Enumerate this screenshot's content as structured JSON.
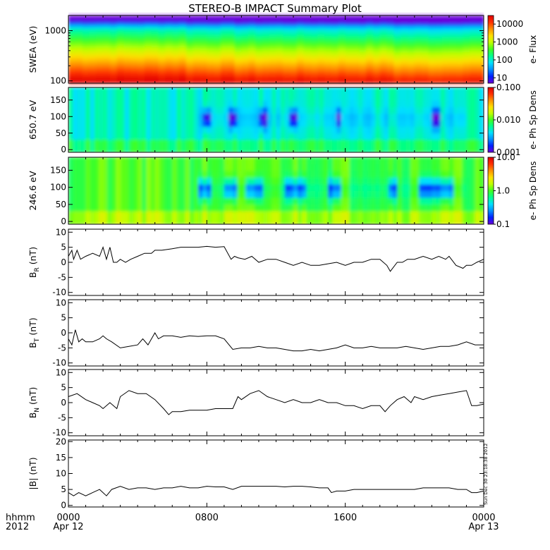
{
  "title": "STEREO-B IMPACT Summary Plot",
  "x_axis": {
    "row_label_1": "hhmm",
    "row_label_2": "2012",
    "ticks": [
      {
        "hours": 0,
        "time": "0000",
        "date": "Apr 12"
      },
      {
        "hours": 8,
        "time": "0800",
        "date": ""
      },
      {
        "hours": 16,
        "time": "1600",
        "date": ""
      },
      {
        "hours": 24,
        "time": "0000",
        "date": "Apr 13"
      }
    ],
    "minor_step_hours": 1
  },
  "timestamp": "Sun Dec 30 23:18:38 2012",
  "colors": {
    "line": "#000000",
    "axes": "#000000",
    "colormap": [
      "#6a00d8",
      "#0020ff",
      "#0090ff",
      "#00e0ff",
      "#00ff90",
      "#40ff20",
      "#c0ff00",
      "#ffe000",
      "#ff9000",
      "#ff3000",
      "#e00000"
    ]
  },
  "chart_data": [
    {
      "type": "heatmap",
      "id": "swea",
      "ylabel": "SWEA (eV)",
      "y_scale": "log",
      "ylim": [
        90,
        2000
      ],
      "yticks": [
        {
          "value": 100,
          "label": "100"
        },
        {
          "value": 1000,
          "label": "1000"
        }
      ],
      "colorbar": {
        "label": "e- Flux",
        "scale": "log",
        "range": [
          5,
          30000
        ],
        "ticks": [
          {
            "value": 10,
            "label": "10"
          },
          {
            "value": 100,
            "label": "100"
          },
          {
            "value": 1000,
            "label": "1000"
          },
          {
            "value": 10000,
            "label": "10000"
          }
        ]
      },
      "description_bands_from_top": [
        "dark blue above ~1500 eV",
        "cyan/green 400-1000 eV",
        "yellow-green 150-300 eV",
        "yellow/orange near 100 eV"
      ]
    },
    {
      "type": "heatmap",
      "id": "pad650",
      "ylabel": "650.7 eV",
      "ylim": [
        -8,
        188
      ],
      "yticks": [
        {
          "value": 0,
          "label": "0"
        },
        {
          "value": 50,
          "label": "50"
        },
        {
          "value": 100,
          "label": "100"
        },
        {
          "value": 150,
          "label": "150"
        }
      ],
      "colorbar": {
        "label": "e- Ph Sp Dens",
        "scale": "log",
        "range": [
          0.001,
          0.1
        ],
        "ticks": [
          {
            "value": 0.001,
            "label": "0.001"
          },
          {
            "value": 0.01,
            "label": "0.010"
          },
          {
            "value": 0.1,
            "label": "0.100"
          }
        ]
      },
      "typical_level": 0.005,
      "depletion_intervals_hours": [
        [
          7.8,
          8.3
        ],
        [
          9.3,
          9.8
        ],
        [
          11.0,
          11.5
        ],
        [
          12.8,
          13.3
        ],
        [
          15.4,
          15.8
        ],
        [
          21.0,
          21.6
        ]
      ]
    },
    {
      "type": "heatmap",
      "id": "pad246",
      "ylabel": "246.6 eV",
      "ylim": [
        -8,
        188
      ],
      "yticks": [
        {
          "value": 0,
          "label": "0"
        },
        {
          "value": 50,
          "label": "50"
        },
        {
          "value": 100,
          "label": "100"
        },
        {
          "value": 150,
          "label": "150"
        }
      ],
      "colorbar": {
        "label": "e- Ph Sp Dens",
        "scale": "log",
        "range": [
          0.1,
          10
        ],
        "ticks": [
          {
            "value": 0.1,
            "label": "0.1"
          },
          {
            "value": 1,
            "label": "1.0"
          },
          {
            "value": 10,
            "label": "10.0"
          }
        ]
      },
      "typical_level": 1.0,
      "depletion_intervals_hours": [
        [
          7.5,
          8.3
        ],
        [
          9.0,
          9.7
        ],
        [
          10.2,
          11.2
        ],
        [
          12.5,
          13.7
        ],
        [
          15.0,
          15.8
        ],
        [
          18.5,
          18.9
        ],
        [
          20.3,
          21.4
        ],
        [
          21.5,
          22.3
        ]
      ]
    },
    {
      "type": "line",
      "id": "br",
      "ylabel": "B",
      "ylabel_sub": "R",
      "yunit": "(nT)",
      "ylim": [
        -11,
        11
      ],
      "yticks": [
        {
          "value": -10,
          "label": "-10"
        },
        {
          "value": -5,
          "label": "-5"
        },
        {
          "value": 0,
          "label": "0"
        },
        {
          "value": 5,
          "label": "5"
        },
        {
          "value": 10,
          "label": "10"
        }
      ],
      "x": [
        0,
        0.2,
        0.3,
        0.5,
        0.7,
        1,
        1.4,
        1.8,
        2,
        2.2,
        2.4,
        2.6,
        2.8,
        3,
        3.3,
        3.6,
        4,
        4.4,
        4.8,
        5,
        5.4,
        6,
        6.5,
        7,
        7.5,
        8,
        8.5,
        9,
        9.4,
        9.6,
        9.8,
        10.2,
        10.6,
        11,
        11.5,
        12,
        12.5,
        13,
        13.5,
        14,
        14.5,
        15,
        15.5,
        16,
        16.5,
        17,
        17.5,
        18,
        18.4,
        18.6,
        19,
        19.3,
        19.6,
        20,
        20.5,
        21,
        21.4,
        21.8,
        22,
        22.4,
        22.8,
        23,
        23.3,
        23.6,
        24
      ],
      "y": [
        2,
        4,
        1,
        4,
        1,
        2,
        3,
        2,
        5,
        1,
        5,
        0,
        0,
        1,
        0,
        1,
        2,
        3,
        3,
        4,
        4,
        4.5,
        5,
        5,
        5,
        5.3,
        5,
        5.2,
        1,
        2,
        1.5,
        1,
        2,
        0,
        1,
        1,
        0,
        -1,
        0,
        -1,
        -1,
        -0.5,
        0,
        -1,
        0,
        0,
        1,
        1,
        -1,
        -3,
        0,
        0,
        1,
        1,
        2,
        1,
        2,
        1,
        2,
        -1,
        -2,
        -1,
        -1,
        0,
        1
      ]
    },
    {
      "type": "line",
      "id": "bt",
      "ylabel": "B",
      "ylabel_sub": "T",
      "yunit": "(nT)",
      "ylim": [
        -11,
        11
      ],
      "yticks": [
        {
          "value": -10,
          "label": "-10"
        },
        {
          "value": -5,
          "label": "-5"
        },
        {
          "value": 0,
          "label": "0"
        },
        {
          "value": 5,
          "label": "5"
        },
        {
          "value": 10,
          "label": "10"
        }
      ],
      "x": [
        0,
        0.2,
        0.4,
        0.6,
        0.8,
        1,
        1.4,
        1.8,
        2,
        2.2,
        2.5,
        3,
        3.5,
        4,
        4.3,
        4.6,
        5,
        5.2,
        5.5,
        6,
        6.5,
        7,
        7.5,
        8,
        8.5,
        9,
        9.5,
        10,
        10.5,
        11,
        11.5,
        12,
        12.5,
        13,
        13.5,
        14,
        14.5,
        15,
        15.5,
        16,
        16.5,
        17,
        17.5,
        18,
        18.5,
        19,
        19.5,
        20,
        20.5,
        21,
        21.5,
        22,
        22.5,
        23,
        23.5,
        24
      ],
      "y": [
        -2,
        -4,
        1,
        -3,
        -2,
        -3,
        -3,
        -2,
        -1,
        -2,
        -3,
        -5,
        -4.5,
        -4,
        -2,
        -4,
        0,
        -2,
        -1,
        -1,
        -1.5,
        -1,
        -1.2,
        -1,
        -1,
        -2,
        -5.5,
        -5,
        -5,
        -4.5,
        -5,
        -5,
        -5.5,
        -6,
        -6,
        -5.5,
        -6,
        -5.5,
        -5,
        -4,
        -5,
        -5,
        -4.5,
        -5,
        -5,
        -5,
        -4.5,
        -5,
        -5.5,
        -5,
        -4.5,
        -4.5,
        -4,
        -3,
        -4,
        -4
      ]
    },
    {
      "type": "line",
      "id": "bn",
      "ylabel": "B",
      "ylabel_sub": "N",
      "yunit": "(nT)",
      "ylim": [
        -11,
        11
      ],
      "yticks": [
        {
          "value": -10,
          "label": "-10"
        },
        {
          "value": -5,
          "label": "-5"
        },
        {
          "value": 0,
          "label": "0"
        },
        {
          "value": 5,
          "label": "5"
        },
        {
          "value": 10,
          "label": "10"
        }
      ],
      "x": [
        0,
        0.5,
        1,
        1.4,
        1.8,
        2,
        2.4,
        2.8,
        3,
        3.5,
        4,
        4.5,
        5,
        5.5,
        5.8,
        6,
        6.5,
        7,
        7.5,
        8,
        8.5,
        9,
        9.5,
        9.8,
        10,
        10.5,
        11,
        11.5,
        12,
        12.5,
        13,
        13.5,
        14,
        14.5,
        15,
        15.5,
        16,
        16.5,
        17,
        17.5,
        18,
        18.3,
        18.6,
        19,
        19.4,
        19.8,
        20,
        20.5,
        21,
        21.5,
        22,
        22.5,
        23,
        23.3,
        23.6,
        24
      ],
      "y": [
        2,
        3,
        1,
        0,
        -1,
        -2,
        0,
        -2,
        2,
        4,
        3,
        3,
        1,
        -2,
        -4,
        -3,
        -3,
        -2.5,
        -2.5,
        -2.5,
        -2,
        -2,
        -2,
        2,
        1,
        3,
        4,
        2,
        1,
        0,
        1,
        0,
        0,
        1,
        0,
        0,
        -1,
        -1,
        -2,
        -1,
        -1,
        -3,
        -1,
        1,
        2,
        0,
        2,
        1,
        2,
        2.5,
        3,
        3.5,
        4,
        -1,
        -1,
        -0.5
      ]
    },
    {
      "type": "line",
      "id": "bmag",
      "ylabel": "|B| (nT)",
      "ylim": [
        -0.5,
        20.5
      ],
      "yticks": [
        {
          "value": 0,
          "label": "0"
        },
        {
          "value": 5,
          "label": "5"
        },
        {
          "value": 10,
          "label": "10"
        },
        {
          "value": 15,
          "label": "15"
        },
        {
          "value": 20,
          "label": "20"
        }
      ],
      "x": [
        0,
        0.3,
        0.6,
        1,
        1.4,
        1.8,
        2.2,
        2.5,
        3,
        3.5,
        4,
        4.5,
        5,
        5.5,
        6,
        6.5,
        7,
        7.5,
        8,
        8.5,
        9,
        9.5,
        10,
        10.5,
        11,
        11.5,
        12,
        12.5,
        13,
        13.5,
        14,
        14.5,
        15,
        15.2,
        15.5,
        16,
        16.5,
        17,
        17.5,
        18,
        18.5,
        19,
        19.5,
        20,
        20.5,
        21,
        21.5,
        22,
        22.5,
        23,
        23.3,
        23.6,
        24
      ],
      "y": [
        4,
        3,
        4,
        3,
        4,
        5,
        3,
        5,
        6,
        5,
        5.5,
        5.5,
        5,
        5.5,
        5.5,
        6,
        5.5,
        5.5,
        6,
        5.8,
        5.8,
        5,
        6,
        6,
        6,
        6,
        6,
        5.8,
        6,
        6,
        5.8,
        5.5,
        5.5,
        4,
        4.5,
        4.5,
        5,
        5,
        5,
        5,
        5,
        5,
        5,
        5,
        5.5,
        5.5,
        5.5,
        5.5,
        5,
        5,
        4,
        4,
        4.5
      ]
    }
  ]
}
